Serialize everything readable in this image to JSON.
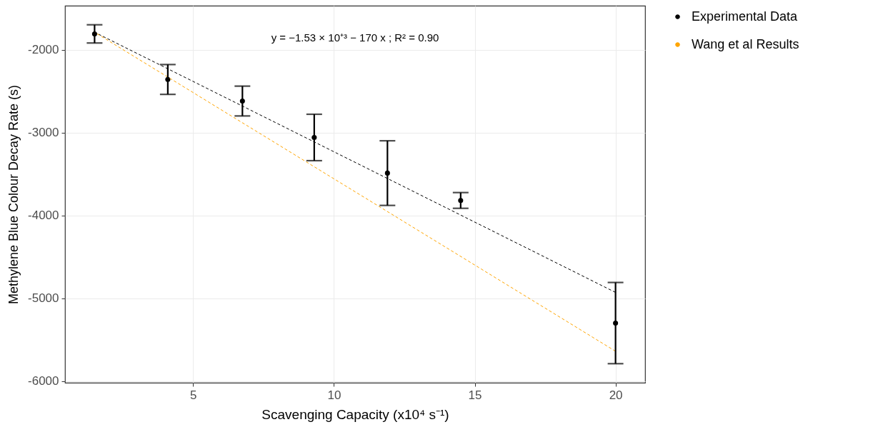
{
  "chart_data": {
    "type": "scatter",
    "xlabel": "Scavenging Capacity (x10⁴ s⁻¹)",
    "ylabel": "Methylene Blue Colour Decay Rate (s)",
    "annotations": [
      "y = −1.53 × 10⁺³ − 170 x ; R² = 0.90"
    ],
    "series": [
      {
        "name": "Experimental Data",
        "color": "#000000",
        "marker": "circle",
        "x": [
          1.5,
          4.1,
          6.75,
          9.3,
          11.9,
          14.5,
          20
        ],
        "values": [
          -1810,
          -2360,
          -2620,
          -3060,
          -3490,
          -3820,
          -5300
        ],
        "errors": [
          110,
          180,
          180,
          280,
          390,
          95,
          490
        ]
      },
      {
        "type": "line",
        "color": "#000000",
        "marker": "none",
        "line_style": "dashed",
        "x": [
          1.5,
          20
        ],
        "values": [
          -1790,
          -4930
        ]
      },
      {
        "name": "Wang et al Results",
        "type": "line",
        "color": "#ffa500",
        "marker": "none",
        "line_style": "dashed",
        "x": [
          1.5,
          20
        ],
        "values": [
          -1790,
          -5640
        ]
      }
    ],
    "xlim": [
      0.45,
      21.05
    ],
    "ylim": [
      -6020,
      -1470
    ],
    "xticks": [
      5,
      10,
      15,
      20
    ],
    "yticks": [
      -6000,
      -5000,
      -4000,
      -3000,
      -2000
    ],
    "grid": true,
    "legend": "right"
  }
}
